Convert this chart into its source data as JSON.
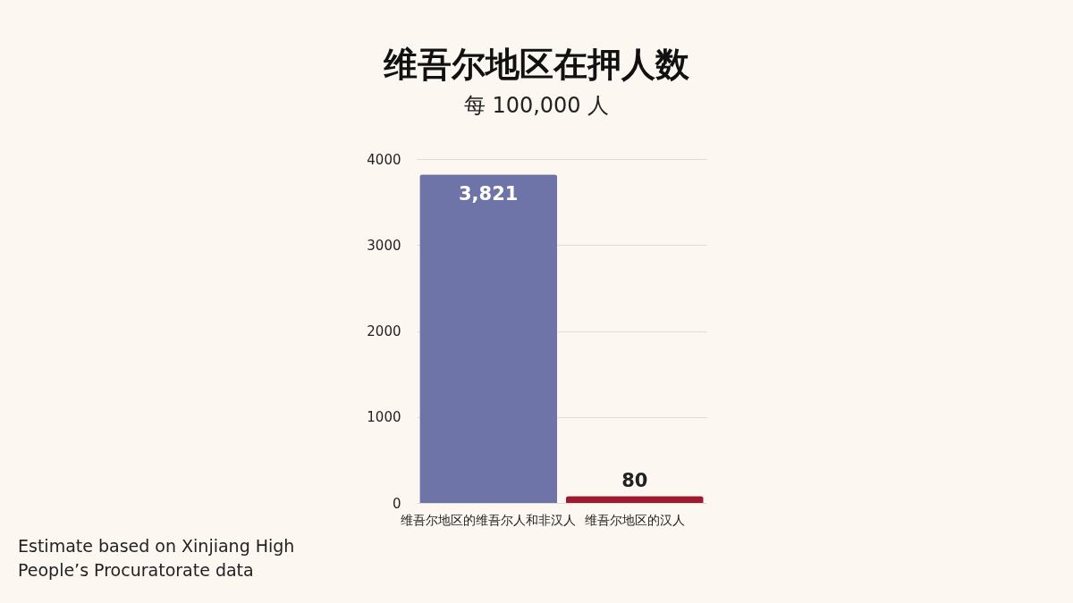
{
  "chart_data": {
    "type": "bar",
    "title": "维吾尔地区在押人数",
    "subtitle": "每 100,000 人",
    "categories": [
      "维吾尔地区的维吾尔人和非汉人",
      "维吾尔地区的汉人"
    ],
    "values": [
      3821,
      80
    ],
    "colors": [
      "#6f74a8",
      "#9e1b2e"
    ],
    "value_labels": [
      "3,821",
      "80"
    ],
    "ylim": [
      0,
      4000
    ],
    "yticks": [
      0,
      1000,
      2000,
      3000,
      4000
    ],
    "grid": "y",
    "annotations": [
      "Estimate based on Xinjiang High People’s Procuratorate data"
    ]
  }
}
